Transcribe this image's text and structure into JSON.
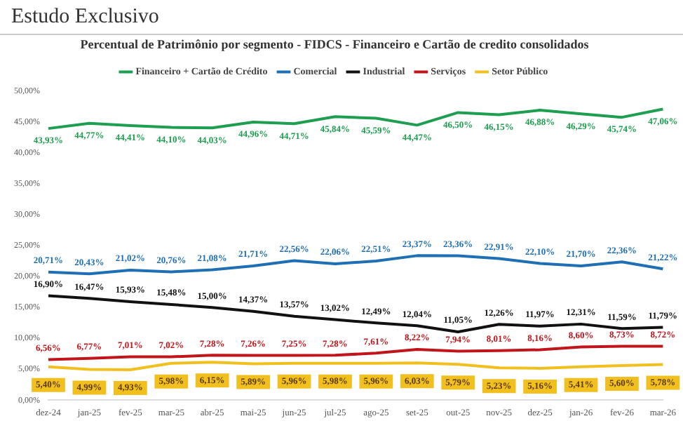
{
  "chart_data": {
    "type": "line",
    "title": "Percentual de Patrimônio por segmento - FIDCS - Financeiro e Cartão de credito consolidados",
    "annotations": [
      "Estudo Exclusivo"
    ],
    "categories": [
      "dez-24",
      "jan-25",
      "fev-25",
      "mar-25",
      "abr-25",
      "mai-25",
      "jun-25",
      "jul-25",
      "ago-25",
      "set-25",
      "out-25",
      "nov-25",
      "dez-25",
      "jan-26",
      "fev-26",
      "mar-26"
    ],
    "series": [
      {
        "name": "Financeiro + Cartão de Crédito",
        "color": "#1e9e50",
        "values": [
          43.93,
          44.77,
          44.41,
          44.1,
          44.03,
          44.96,
          44.71,
          45.84,
          45.59,
          44.47,
          46.5,
          46.15,
          46.88,
          46.29,
          45.74,
          47.06
        ],
        "value_labels": [
          "43,93%",
          "44,77%",
          "44,41%",
          "44,10%",
          "44,03%",
          "44,96%",
          "44,71%",
          "45,84%",
          "45,59%",
          "44,47%",
          "46,50%",
          "46,15%",
          "46,88%",
          "46,29%",
          "45,74%",
          "47,06%"
        ]
      },
      {
        "name": "Comercial",
        "color": "#1f6fb5",
        "values": [
          20.71,
          20.43,
          21.02,
          20.76,
          21.08,
          21.71,
          22.56,
          22.06,
          22.51,
          23.37,
          23.36,
          22.91,
          22.1,
          21.7,
          22.36,
          21.22
        ],
        "value_labels": [
          "20,71%",
          "20,43%",
          "21,02%",
          "20,76%",
          "21,08%",
          "21,71%",
          "22,56%",
          "22,06%",
          "22,51%",
          "23,37%",
          "23,36%",
          "22,91%",
          "22,10%",
          "21,70%",
          "22,36%",
          "21,22%"
        ]
      },
      {
        "name": "Industrial",
        "color": "#111111",
        "values": [
          16.9,
          16.47,
          15.93,
          15.48,
          15.0,
          14.37,
          13.57,
          13.02,
          12.49,
          12.04,
          11.05,
          12.26,
          11.97,
          12.31,
          11.59,
          11.79
        ],
        "value_labels": [
          "16,90%",
          "16,47%",
          "15,93%",
          "15,48%",
          "15,00%",
          "14,37%",
          "13,57%",
          "13,02%",
          "12,49%",
          "12,04%",
          "11,05%",
          "12,26%",
          "11,97%",
          "12,31%",
          "11,59%",
          "11,79%"
        ]
      },
      {
        "name": "Serviços",
        "color": "#c0151b",
        "values": [
          6.56,
          6.77,
          7.01,
          7.02,
          7.28,
          7.26,
          7.25,
          7.28,
          7.61,
          8.22,
          7.94,
          8.01,
          8.16,
          8.6,
          8.73,
          8.72
        ],
        "value_labels": [
          "6,56%",
          "6,77%",
          "7,01%",
          "7,02%",
          "7,28%",
          "7,26%",
          "7,25%",
          "7,28%",
          "7,61%",
          "8,22%",
          "7,94%",
          "8,01%",
          "8,16%",
          "8,60%",
          "8,73%",
          "8,72%"
        ]
      },
      {
        "name": "Setor Público",
        "color": "#f2c01e",
        "values": [
          5.4,
          4.99,
          4.93,
          5.98,
          6.15,
          5.89,
          5.96,
          5.98,
          5.96,
          6.03,
          5.79,
          5.23,
          5.16,
          5.41,
          5.6,
          5.78
        ],
        "value_labels": [
          "5,40%",
          "4,99%",
          "4,93%",
          "5,98%",
          "6,15%",
          "5,89%",
          "5,96%",
          "5,98%",
          "5,96%",
          "6,03%",
          "5,79%",
          "5,23%",
          "5,16%",
          "5,41%",
          "5,60%",
          "5,78%"
        ]
      }
    ],
    "ylim": [
      0,
      50
    ],
    "yticks": [
      {
        "value": 0,
        "label": "0,00%"
      },
      {
        "value": 5,
        "label": "5,00%"
      },
      {
        "value": 10,
        "label": "10,00%"
      },
      {
        "value": 15,
        "label": "15,00%"
      },
      {
        "value": 20,
        "label": "20,00%"
      },
      {
        "value": 25,
        "label": "25,00%"
      },
      {
        "value": 30,
        "label": "30,00%"
      },
      {
        "value": 35,
        "label": "35,00%"
      },
      {
        "value": 40,
        "label": "40,00%"
      },
      {
        "value": 45,
        "label": "45,00%"
      },
      {
        "value": 50,
        "label": "50,00%"
      }
    ],
    "grid": false,
    "legend": "top",
    "marker": "none",
    "line_style": "solid"
  }
}
